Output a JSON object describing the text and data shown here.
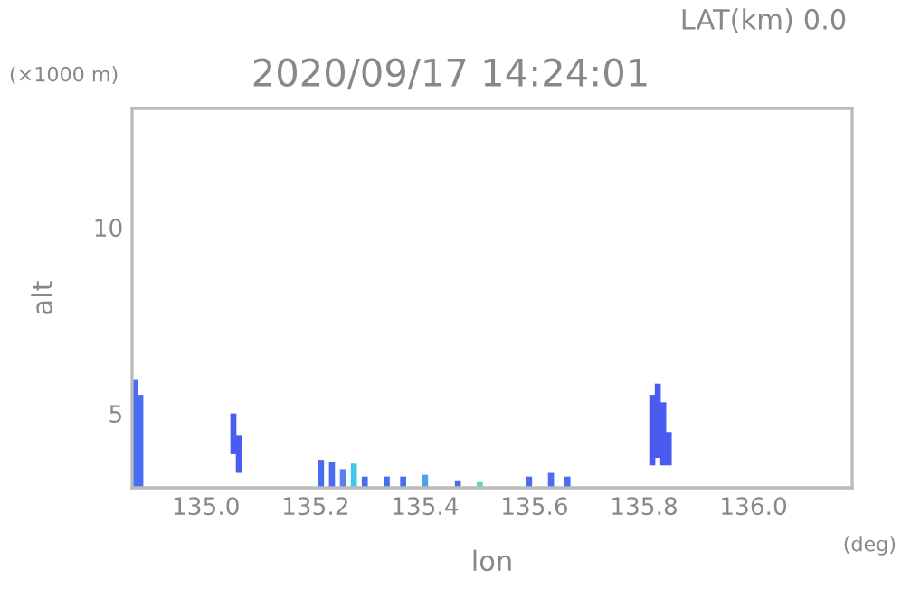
{
  "chart_data": {
    "type": "bar",
    "title": "2020/09/17 14:24:01",
    "subtitle": "LAT(km) 0.0",
    "xlabel": "lon",
    "ylabel": "alt",
    "annotations": [
      "(×1000 m)",
      "(deg)"
    ],
    "x": [
      134.87,
      134.88,
      135.05,
      135.06,
      135.21,
      135.23,
      135.25,
      135.27,
      135.29,
      135.33,
      135.36,
      135.4,
      135.46,
      135.5,
      135.59,
      135.63,
      135.66,
      135.815,
      135.825,
      135.835,
      135.845
    ],
    "base": [
      3.0,
      3.0,
      3.9,
      3.4,
      3.0,
      3.0,
      3.0,
      3.0,
      3.0,
      3.0,
      3.0,
      3.0,
      3.0,
      3.0,
      3.0,
      3.0,
      3.0,
      3.6,
      3.8,
      3.6,
      3.6
    ],
    "values": [
      2.9,
      2.5,
      1.1,
      1.0,
      0.75,
      0.7,
      0.5,
      0.65,
      0.3,
      0.3,
      0.3,
      0.35,
      0.2,
      0.15,
      0.3,
      0.4,
      0.3,
      1.9,
      2.0,
      1.7,
      0.9
    ],
    "colors": [
      "#4a6cf0",
      "#4a6cf0",
      "#4a5cf0",
      "#4a5cf0",
      "#4a6cf0",
      "#4a6cf0",
      "#5a80f0",
      "#40c8e8",
      "#4a6cf0",
      "#4a6cf0",
      "#4a6cf0",
      "#50a0f0",
      "#4a6cf0",
      "#50e0a0",
      "#4a6cf0",
      "#4a6cf0",
      "#4a6cf0",
      "#4a5cf0",
      "#4a5cf0",
      "#4a5cf0",
      "#4a5cf0"
    ],
    "xlim": [
      134.865,
      136.18
    ],
    "ylim": [
      3.0,
      13.2
    ],
    "xticks": [
      {
        "value": 135.0,
        "label": "135.0"
      },
      {
        "value": 135.2,
        "label": "135.2"
      },
      {
        "value": 135.4,
        "label": "135.4"
      },
      {
        "value": 135.6,
        "label": "135.6"
      },
      {
        "value": 135.8,
        "label": "135.8"
      },
      {
        "value": 136.0,
        "label": "136.0"
      }
    ],
    "yticks": [
      5,
      10
    ],
    "grid": false,
    "legend": false
  }
}
